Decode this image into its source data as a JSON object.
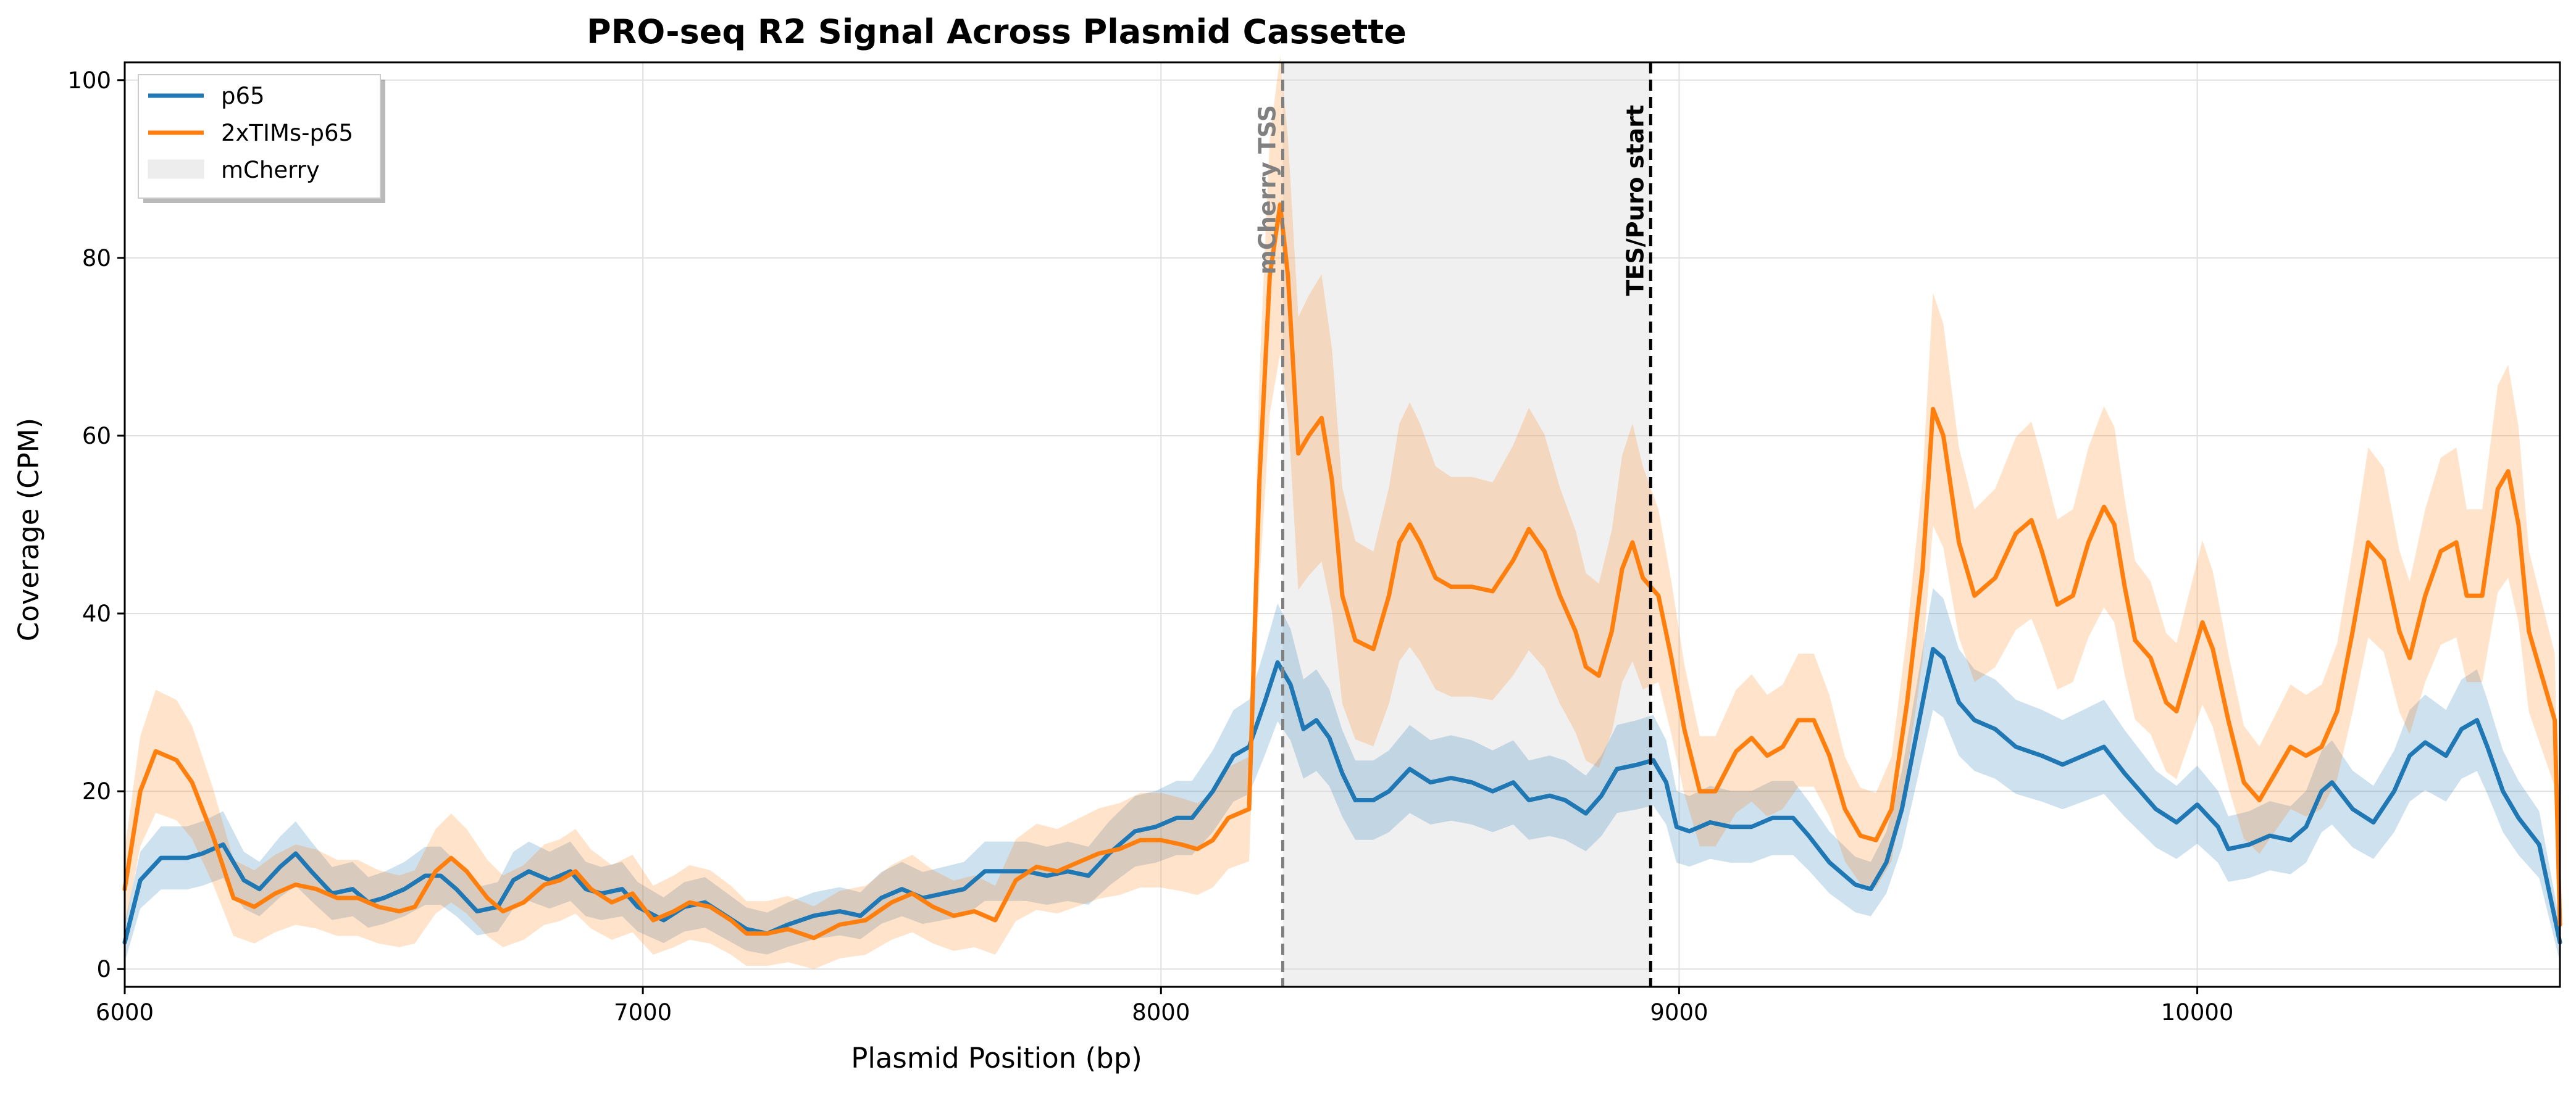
{
  "chart_data": {
    "type": "line",
    "title": "PRO-seq R2 Signal Across Plasmid Cassette",
    "xlabel": "Plasmid Position (bp)",
    "ylabel": "Coverage (CPM)",
    "xlim": [
      6000,
      10700
    ],
    "ylim": [
      -2,
      102
    ],
    "x_ticks": [
      6000,
      7000,
      8000,
      9000,
      10000
    ],
    "y_ticks": [
      0,
      20,
      40,
      60,
      80,
      100
    ],
    "grid": true,
    "legend_position": "top-left",
    "shaded_region": {
      "name": "mCherry",
      "x_start": 8235,
      "x_end": 8945,
      "color": "#d9d9d9"
    },
    "vlines": [
      {
        "x": 8235,
        "label": "mCherry TSS",
        "color": "#808080",
        "style": "dashed"
      },
      {
        "x": 8945,
        "label": "TES/Puro start",
        "color": "#000000",
        "style": "dashed"
      }
    ],
    "series": [
      {
        "name": "p65",
        "color": "#1f77b4",
        "points": [
          [
            6000,
            3
          ],
          [
            6030,
            10
          ],
          [
            6070,
            12.5
          ],
          [
            6120,
            12.5
          ],
          [
            6150,
            13
          ],
          [
            6190,
            14
          ],
          [
            6230,
            10
          ],
          [
            6260,
            9
          ],
          [
            6300,
            11.5
          ],
          [
            6330,
            13
          ],
          [
            6360,
            11
          ],
          [
            6400,
            8.5
          ],
          [
            6440,
            9
          ],
          [
            6470,
            7.5
          ],
          [
            6500,
            8
          ],
          [
            6540,
            9
          ],
          [
            6580,
            10.5
          ],
          [
            6610,
            10.5
          ],
          [
            6640,
            9
          ],
          [
            6680,
            6.5
          ],
          [
            6720,
            7
          ],
          [
            6750,
            10
          ],
          [
            6780,
            11
          ],
          [
            6820,
            10
          ],
          [
            6860,
            11
          ],
          [
            6890,
            9
          ],
          [
            6920,
            8.5
          ],
          [
            6960,
            9
          ],
          [
            6990,
            7
          ],
          [
            7040,
            5.5
          ],
          [
            7080,
            7
          ],
          [
            7120,
            7.5
          ],
          [
            7160,
            6
          ],
          [
            7200,
            4.5
          ],
          [
            7240,
            4
          ],
          [
            7280,
            5
          ],
          [
            7330,
            6
          ],
          [
            7380,
            6.5
          ],
          [
            7420,
            6
          ],
          [
            7460,
            8
          ],
          [
            7500,
            9
          ],
          [
            7540,
            8
          ],
          [
            7580,
            8.5
          ],
          [
            7620,
            9
          ],
          [
            7660,
            11
          ],
          [
            7700,
            11
          ],
          [
            7740,
            11
          ],
          [
            7780,
            10.5
          ],
          [
            7820,
            11
          ],
          [
            7860,
            10.5
          ],
          [
            7900,
            13
          ],
          [
            7950,
            15.5
          ],
          [
            7990,
            16
          ],
          [
            8030,
            17
          ],
          [
            8060,
            17
          ],
          [
            8100,
            20
          ],
          [
            8140,
            24
          ],
          [
            8170,
            25
          ],
          [
            8200,
            30
          ],
          [
            8225,
            34.5
          ],
          [
            8250,
            32
          ],
          [
            8275,
            27
          ],
          [
            8300,
            28
          ],
          [
            8325,
            26
          ],
          [
            8350,
            22
          ],
          [
            8375,
            19
          ],
          [
            8410,
            19
          ],
          [
            8440,
            20
          ],
          [
            8480,
            22.5
          ],
          [
            8520,
            21
          ],
          [
            8560,
            21.5
          ],
          [
            8600,
            21
          ],
          [
            8640,
            20
          ],
          [
            8680,
            21
          ],
          [
            8710,
            19
          ],
          [
            8750,
            19.5
          ],
          [
            8780,
            19
          ],
          [
            8820,
            17.5
          ],
          [
            8850,
            19.5
          ],
          [
            8880,
            22.5
          ],
          [
            8920,
            23
          ],
          [
            8950,
            23.5
          ],
          [
            8975,
            21
          ],
          [
            8995,
            16
          ],
          [
            9020,
            15.5
          ],
          [
            9060,
            16.5
          ],
          [
            9100,
            16
          ],
          [
            9140,
            16
          ],
          [
            9180,
            17
          ],
          [
            9220,
            17
          ],
          [
            9250,
            15
          ],
          [
            9290,
            12
          ],
          [
            9340,
            9.5
          ],
          [
            9370,
            9
          ],
          [
            9400,
            12
          ],
          [
            9430,
            18
          ],
          [
            9460,
            27
          ],
          [
            9490,
            36
          ],
          [
            9510,
            35
          ],
          [
            9540,
            30
          ],
          [
            9570,
            28
          ],
          [
            9610,
            27
          ],
          [
            9650,
            25
          ],
          [
            9700,
            24
          ],
          [
            9740,
            23
          ],
          [
            9780,
            24
          ],
          [
            9820,
            25
          ],
          [
            9860,
            22
          ],
          [
            9890,
            20
          ],
          [
            9920,
            18
          ],
          [
            9960,
            16.5
          ],
          [
            10000,
            18.5
          ],
          [
            10040,
            16
          ],
          [
            10060,
            13.5
          ],
          [
            10100,
            14
          ],
          [
            10140,
            15
          ],
          [
            10180,
            14.5
          ],
          [
            10210,
            16
          ],
          [
            10240,
            20
          ],
          [
            10260,
            21
          ],
          [
            10300,
            18
          ],
          [
            10340,
            16.5
          ],
          [
            10380,
            20
          ],
          [
            10410,
            24
          ],
          [
            10440,
            25.5
          ],
          [
            10480,
            24
          ],
          [
            10510,
            27
          ],
          [
            10540,
            28
          ],
          [
            10560,
            25
          ],
          [
            10590,
            20
          ],
          [
            10620,
            17
          ],
          [
            10660,
            14
          ],
          [
            10700,
            3
          ]
        ]
      },
      {
        "name": "2xTIMs-p65",
        "color": "#ff7f0e",
        "points": [
          [
            6000,
            9
          ],
          [
            6030,
            20
          ],
          [
            6060,
            24.5
          ],
          [
            6100,
            23.5
          ],
          [
            6130,
            21
          ],
          [
            6170,
            15
          ],
          [
            6210,
            8
          ],
          [
            6250,
            7
          ],
          [
            6290,
            8.5
          ],
          [
            6330,
            9.5
          ],
          [
            6370,
            9
          ],
          [
            6410,
            8
          ],
          [
            6450,
            8
          ],
          [
            6490,
            7
          ],
          [
            6530,
            6.5
          ],
          [
            6560,
            7
          ],
          [
            6600,
            11
          ],
          [
            6630,
            12.5
          ],
          [
            6660,
            11
          ],
          [
            6700,
            8
          ],
          [
            6730,
            6.5
          ],
          [
            6770,
            7.5
          ],
          [
            6810,
            9.5
          ],
          [
            6840,
            10
          ],
          [
            6870,
            11
          ],
          [
            6900,
            9
          ],
          [
            6940,
            7.5
          ],
          [
            6980,
            8.5
          ],
          [
            7020,
            5.5
          ],
          [
            7060,
            6.5
          ],
          [
            7090,
            7.5
          ],
          [
            7130,
            7
          ],
          [
            7170,
            5.5
          ],
          [
            7200,
            4
          ],
          [
            7240,
            4
          ],
          [
            7280,
            4.5
          ],
          [
            7330,
            3.5
          ],
          [
            7380,
            5
          ],
          [
            7430,
            5.5
          ],
          [
            7480,
            7.5
          ],
          [
            7520,
            8.5
          ],
          [
            7560,
            7
          ],
          [
            7600,
            6
          ],
          [
            7640,
            6.5
          ],
          [
            7680,
            5.5
          ],
          [
            7720,
            10
          ],
          [
            7760,
            11.5
          ],
          [
            7800,
            11
          ],
          [
            7840,
            12
          ],
          [
            7880,
            13
          ],
          [
            7920,
            13.5
          ],
          [
            7960,
            14.5
          ],
          [
            8000,
            14.5
          ],
          [
            8040,
            14
          ],
          [
            8070,
            13.5
          ],
          [
            8100,
            14.5
          ],
          [
            8130,
            17
          ],
          [
            8170,
            18
          ],
          [
            8190,
            55
          ],
          [
            8210,
            78
          ],
          [
            8230,
            86
          ],
          [
            8245,
            78
          ],
          [
            8265,
            58
          ],
          [
            8285,
            60
          ],
          [
            8310,
            62
          ],
          [
            8330,
            55
          ],
          [
            8350,
            42
          ],
          [
            8375,
            37
          ],
          [
            8410,
            36
          ],
          [
            8440,
            42
          ],
          [
            8460,
            48
          ],
          [
            8480,
            50
          ],
          [
            8500,
            48
          ],
          [
            8530,
            44
          ],
          [
            8560,
            43
          ],
          [
            8600,
            43
          ],
          [
            8640,
            42.5
          ],
          [
            8680,
            46
          ],
          [
            8710,
            49.5
          ],
          [
            8740,
            47
          ],
          [
            8770,
            42
          ],
          [
            8800,
            38
          ],
          [
            8820,
            34
          ],
          [
            8845,
            33
          ],
          [
            8870,
            38
          ],
          [
            8890,
            45
          ],
          [
            8910,
            48
          ],
          [
            8930,
            44
          ],
          [
            8960,
            42
          ],
          [
            8985,
            35
          ],
          [
            9010,
            27
          ],
          [
            9040,
            20
          ],
          [
            9070,
            20
          ],
          [
            9110,
            24.5
          ],
          [
            9140,
            26
          ],
          [
            9170,
            24
          ],
          [
            9200,
            25
          ],
          [
            9230,
            28
          ],
          [
            9260,
            28
          ],
          [
            9290,
            24
          ],
          [
            9320,
            18
          ],
          [
            9350,
            15
          ],
          [
            9380,
            14.5
          ],
          [
            9410,
            18
          ],
          [
            9440,
            30
          ],
          [
            9470,
            45
          ],
          [
            9490,
            63
          ],
          [
            9510,
            60
          ],
          [
            9540,
            48
          ],
          [
            9570,
            42
          ],
          [
            9610,
            44
          ],
          [
            9650,
            49
          ],
          [
            9680,
            50.5
          ],
          [
            9700,
            47
          ],
          [
            9730,
            41
          ],
          [
            9760,
            42
          ],
          [
            9790,
            48
          ],
          [
            9820,
            52
          ],
          [
            9840,
            50
          ],
          [
            9860,
            43
          ],
          [
            9880,
            37
          ],
          [
            9910,
            35
          ],
          [
            9940,
            30
          ],
          [
            9960,
            29
          ],
          [
            9990,
            35
          ],
          [
            10010,
            39
          ],
          [
            10030,
            36
          ],
          [
            10060,
            28
          ],
          [
            10090,
            21
          ],
          [
            10120,
            19
          ],
          [
            10150,
            22
          ],
          [
            10180,
            25
          ],
          [
            10210,
            24
          ],
          [
            10240,
            25
          ],
          [
            10270,
            29
          ],
          [
            10300,
            38
          ],
          [
            10330,
            48
          ],
          [
            10360,
            46
          ],
          [
            10390,
            38
          ],
          [
            10410,
            35
          ],
          [
            10440,
            42
          ],
          [
            10470,
            47
          ],
          [
            10500,
            48
          ],
          [
            10520,
            42
          ],
          [
            10550,
            42
          ],
          [
            10580,
            54
          ],
          [
            10600,
            56
          ],
          [
            10620,
            50
          ],
          [
            10640,
            38
          ],
          [
            10660,
            34
          ],
          [
            10690,
            28
          ],
          [
            10700,
            5
          ]
        ]
      }
    ],
    "legend": [
      "p65",
      "2xTIMs-p65",
      "mCherry"
    ]
  }
}
